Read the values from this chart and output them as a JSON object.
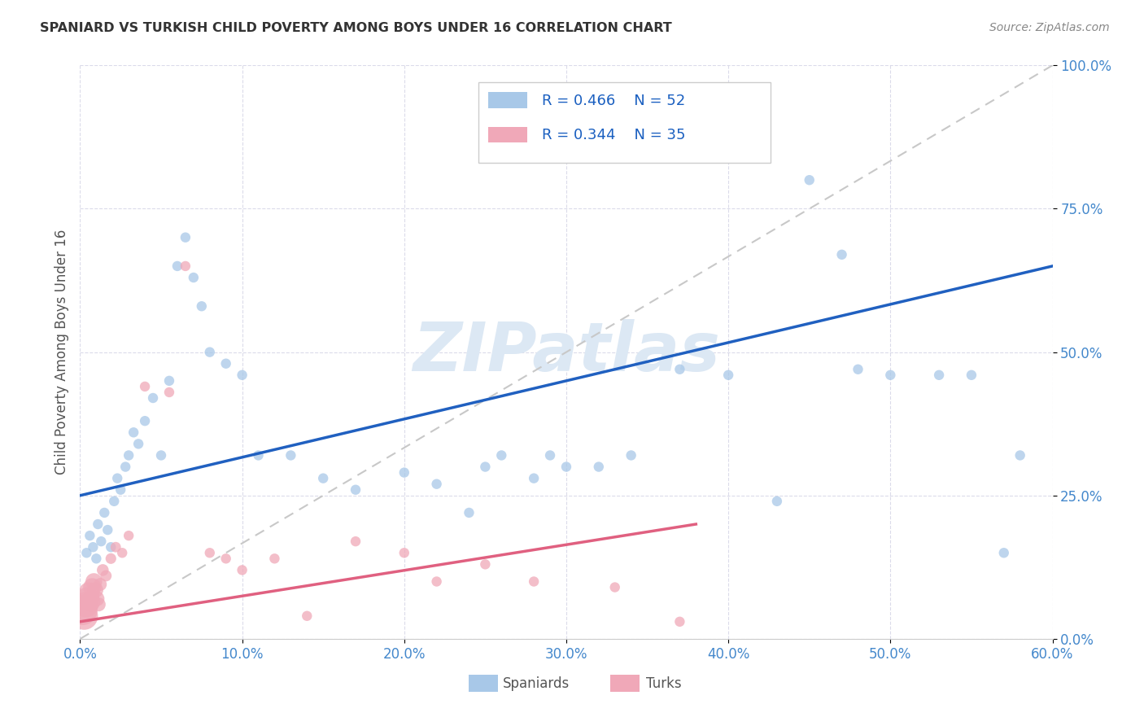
{
  "title": "SPANIARD VS TURKISH CHILD POVERTY AMONG BOYS UNDER 16 CORRELATION CHART",
  "source": "Source: ZipAtlas.com",
  "ylabel_label": "Child Poverty Among Boys Under 16",
  "blue_color": "#a8c8e8",
  "pink_color": "#f0a8b8",
  "blue_line_color": "#2060c0",
  "pink_line_color": "#e06080",
  "diagonal_color": "#c8c8c8",
  "grid_color": "#d8d8e8",
  "watermark_color": "#dce8f4",
  "title_color": "#333333",
  "source_color": "#888888",
  "axis_tick_color": "#4488cc",
  "ylabel_color": "#555555",
  "legend_text_color": "#1a5fc0",
  "legend_edge_color": "#cccccc",
  "bottom_legend_color": "#555555",
  "spaniards_x": [
    0.4,
    0.6,
    0.8,
    1.0,
    1.1,
    1.3,
    1.5,
    1.7,
    1.9,
    2.1,
    2.3,
    2.5,
    2.8,
    3.0,
    3.3,
    3.6,
    4.0,
    4.5,
    5.0,
    5.5,
    6.0,
    6.5,
    7.0,
    7.5,
    8.0,
    9.0,
    10.0,
    11.0,
    13.0,
    15.0,
    17.0,
    20.0,
    22.0,
    24.0,
    25.0,
    26.0,
    28.0,
    29.0,
    30.0,
    32.0,
    34.0,
    37.0,
    40.0,
    43.0,
    45.0,
    47.0,
    48.0,
    50.0,
    53.0,
    55.0,
    57.0,
    58.0
  ],
  "spaniards_y": [
    15.0,
    18.0,
    16.0,
    14.0,
    20.0,
    17.0,
    22.0,
    19.0,
    16.0,
    24.0,
    28.0,
    26.0,
    30.0,
    32.0,
    36.0,
    34.0,
    38.0,
    42.0,
    32.0,
    45.0,
    65.0,
    70.0,
    63.0,
    58.0,
    50.0,
    48.0,
    46.0,
    32.0,
    32.0,
    28.0,
    26.0,
    29.0,
    27.0,
    22.0,
    30.0,
    32.0,
    28.0,
    32.0,
    30.0,
    30.0,
    32.0,
    47.0,
    46.0,
    24.0,
    80.0,
    67.0,
    47.0,
    46.0,
    46.0,
    46.0,
    15.0,
    32.0
  ],
  "spaniards_sizes": [
    80,
    80,
    80,
    80,
    80,
    80,
    80,
    80,
    80,
    80,
    80,
    80,
    80,
    80,
    80,
    80,
    80,
    80,
    80,
    80,
    80,
    80,
    80,
    80,
    80,
    80,
    80,
    80,
    80,
    80,
    80,
    80,
    80,
    80,
    80,
    80,
    80,
    80,
    80,
    80,
    80,
    80,
    80,
    80,
    80,
    80,
    80,
    80,
    80,
    80,
    80,
    80
  ],
  "turks_x": [
    0.15,
    0.25,
    0.35,
    0.45,
    0.55,
    0.65,
    0.75,
    0.85,
    0.95,
    1.05,
    1.15,
    1.25,
    1.4,
    1.6,
    1.9,
    2.2,
    2.6,
    3.0,
    4.0,
    5.5,
    6.5,
    8.0,
    9.0,
    10.0,
    12.0,
    14.0,
    17.0,
    20.0,
    22.0,
    25.0,
    28.0,
    33.0,
    37.0
  ],
  "turks_y": [
    5.0,
    4.0,
    6.0,
    7.0,
    8.0,
    6.5,
    9.0,
    10.0,
    8.5,
    7.0,
    6.0,
    9.5,
    12.0,
    11.0,
    14.0,
    16.0,
    15.0,
    18.0,
    44.0,
    43.0,
    65.0,
    15.0,
    14.0,
    12.0,
    14.0,
    4.0,
    17.0,
    15.0,
    10.0,
    13.0,
    10.0,
    9.0,
    3.0
  ],
  "turks_sizes": [
    700,
    600,
    500,
    420,
    360,
    300,
    260,
    220,
    190,
    170,
    150,
    130,
    110,
    100,
    90,
    85,
    80,
    80,
    80,
    80,
    80,
    80,
    80,
    80,
    80,
    80,
    80,
    80,
    80,
    80,
    80,
    80,
    80
  ],
  "xlim": [
    0,
    60
  ],
  "ylim": [
    0,
    100
  ],
  "xticks": [
    0,
    10,
    20,
    30,
    40,
    50,
    60
  ],
  "yticks": [
    0,
    25,
    50,
    75,
    100
  ],
  "blue_line_x": [
    0,
    60
  ],
  "blue_line_y": [
    25.0,
    65.0
  ],
  "pink_line_x": [
    0,
    38
  ],
  "pink_line_y": [
    3.0,
    20.0
  ]
}
